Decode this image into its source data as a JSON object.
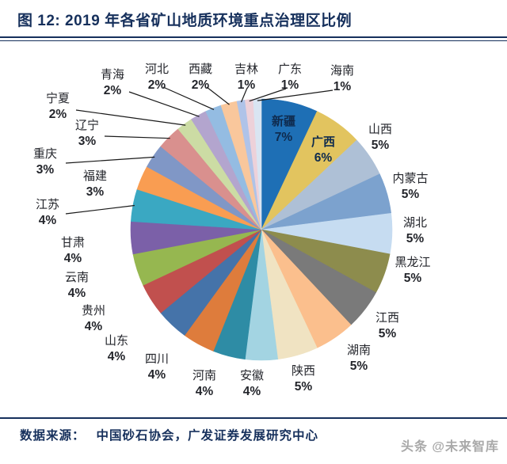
{
  "header": {
    "title": "图 12: 2019 年各省矿山地质环境重点治理区比例"
  },
  "footer": {
    "source_label": "数据来源：",
    "source_text": "中国砂石协会，广发证券发展研究中心",
    "watermark": "头条 @未来智库"
  },
  "chart_data": {
    "type": "pie",
    "title": "2019 年各省矿山地质环境重点治理区比例",
    "value_unit": "%",
    "total": 100,
    "start_angle_deg": 0,
    "direction": "clockwise",
    "legend_position": "none",
    "labels_inside": [
      "新疆",
      "广西"
    ],
    "slices": [
      {
        "name": "新疆",
        "value": 7,
        "color": "#1E6FB5"
      },
      {
        "name": "广西",
        "value": 6,
        "color": "#E2C45F"
      },
      {
        "name": "山西",
        "value": 5,
        "color": "#AEC0D6"
      },
      {
        "name": "内蒙古",
        "value": 5,
        "color": "#7CA2CE"
      },
      {
        "name": "湖北",
        "value": 5,
        "color": "#C6DCF1"
      },
      {
        "name": "黑龙江",
        "value": 5,
        "color": "#8D8C4D"
      },
      {
        "name": "江西",
        "value": 5,
        "color": "#7A7A7A"
      },
      {
        "name": "湖南",
        "value": 5,
        "color": "#FBBF8D"
      },
      {
        "name": "陕西",
        "value": 5,
        "color": "#F0E3C2"
      },
      {
        "name": "安徽",
        "value": 4,
        "color": "#A3D4E2"
      },
      {
        "name": "河南",
        "value": 4,
        "color": "#2E8CA5"
      },
      {
        "name": "四川",
        "value": 4,
        "color": "#DE7C3C"
      },
      {
        "name": "山东",
        "value": 4,
        "color": "#4573A9"
      },
      {
        "name": "贵州",
        "value": 4,
        "color": "#C1504E"
      },
      {
        "name": "云南",
        "value": 4,
        "color": "#96B750"
      },
      {
        "name": "甘肃",
        "value": 4,
        "color": "#7B60A8"
      },
      {
        "name": "江苏",
        "value": 4,
        "color": "#3AA8C2"
      },
      {
        "name": "福建",
        "value": 3,
        "color": "#F99D52"
      },
      {
        "name": "重庆",
        "value": 3,
        "color": "#8097C6"
      },
      {
        "name": "辽宁",
        "value": 3,
        "color": "#D9908E"
      },
      {
        "name": "宁夏",
        "value": 2,
        "color": "#CCDCA4"
      },
      {
        "name": "青海",
        "value": 2,
        "color": "#B3A5CE"
      },
      {
        "name": "河北",
        "value": 2,
        "color": "#94BCE2"
      },
      {
        "name": "西藏",
        "value": 2,
        "color": "#F9C79C"
      },
      {
        "name": "吉林",
        "value": 1,
        "color": "#AFC3E8"
      },
      {
        "name": "广东",
        "value": 1,
        "color": "#EDD1D9"
      },
      {
        "name": "海南",
        "value": 1,
        "color": "#D9E5F2"
      }
    ]
  },
  "colors": {
    "background": "#FFFFFF",
    "title_text": "#16305C",
    "rule": "#16305C",
    "label_text": "#23252B",
    "inner_label_text": "#0F2B4E",
    "leader_line": "#1A1A1A",
    "watermark_text": "#A9A9A9"
  }
}
